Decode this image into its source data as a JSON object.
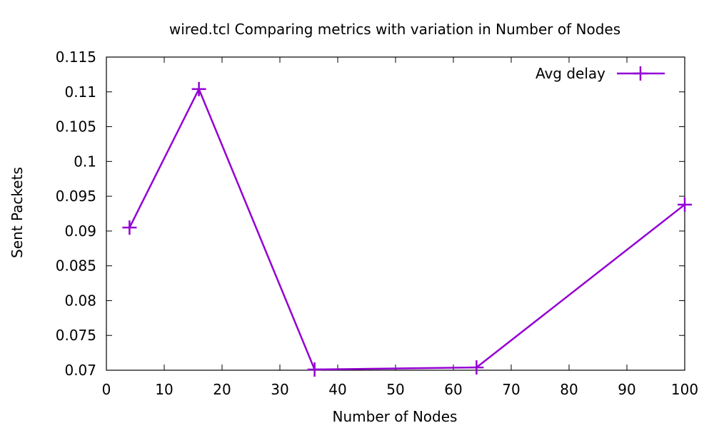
{
  "chart_data": {
    "type": "line",
    "title": "wired.tcl Comparing metrics with variation in Number of Nodes",
    "xlabel": "Number of Nodes",
    "ylabel": "Sent Packets",
    "xlim": [
      0,
      100
    ],
    "ylim": [
      0.07,
      0.115
    ],
    "x_ticks": [
      "0",
      "10",
      "20",
      "30",
      "40",
      "50",
      "60",
      "70",
      "80",
      "90",
      "100"
    ],
    "y_ticks": [
      "0.07",
      "0.075",
      "0.08",
      "0.085",
      "0.09",
      "0.095",
      "0.1",
      "0.105",
      "0.11",
      "0.115"
    ],
    "grid": false,
    "legend_position": "top-right",
    "series": [
      {
        "name": "Avg delay",
        "color": "#9400d3",
        "marker": "plus",
        "x": [
          4,
          16,
          36,
          64,
          100
        ],
        "y": [
          0.0905,
          0.1104,
          0.0701,
          0.0704,
          0.0938
        ]
      }
    ]
  }
}
